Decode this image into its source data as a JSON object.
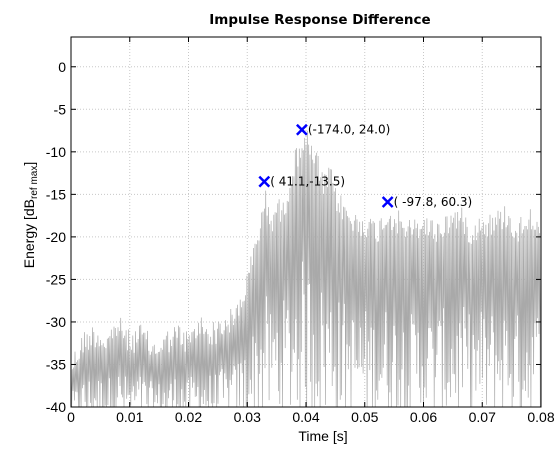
{
  "chart_data": {
    "type": "line",
    "title": "Impulse Response Difference",
    "xlabel": "Time [s]",
    "ylabel_main": "Energy [dB",
    "ylabel_sub": "ref max",
    "ylabel_close": "]",
    "xlim": [
      0,
      0.08
    ],
    "ylim": [
      -40,
      3.5
    ],
    "grid": true,
    "x_ticks": [
      0,
      0.01,
      0.02,
      0.03,
      0.04,
      0.05,
      0.06,
      0.07,
      0.08
    ],
    "x_tick_labels": [
      "0",
      "0.01",
      "0.02",
      "0.03",
      "0.04",
      "0.05",
      "0.06",
      "0.07",
      "0.08"
    ],
    "y_ticks": [
      -40,
      -35,
      -30,
      -25,
      -20,
      -15,
      -10,
      -5,
      0
    ],
    "y_tick_labels": [
      "-40",
      "-35",
      "-30",
      "-25",
      "-20",
      "-15",
      "-10",
      "-5",
      "0"
    ],
    "series": [
      {
        "color": "#a9a9a9",
        "x": [
          0.0,
          0.002,
          0.004,
          0.006,
          0.008,
          0.01,
          0.012,
          0.014,
          0.016,
          0.018,
          0.02,
          0.022,
          0.024,
          0.026,
          0.028,
          0.03,
          0.031,
          0.032,
          0.033,
          0.034,
          0.035,
          0.036,
          0.037,
          0.038,
          0.039,
          0.04,
          0.041,
          0.042,
          0.043,
          0.044,
          0.045,
          0.046,
          0.047,
          0.048,
          0.05,
          0.052,
          0.054,
          0.056,
          0.058,
          0.06,
          0.062,
          0.064,
          0.066,
          0.068,
          0.07,
          0.072,
          0.074,
          0.076,
          0.078,
          0.08
        ],
        "y": [
          -34,
          -31,
          -30,
          -31,
          -29,
          -31,
          -30,
          -32,
          -31,
          -30,
          -31,
          -29,
          -30,
          -29,
          -28,
          -24,
          -21,
          -18,
          -14,
          -17,
          -15,
          -16,
          -13,
          -10,
          -8,
          -7,
          -9,
          -10,
          -13,
          -11,
          -14,
          -15,
          -16,
          -17,
          -17,
          -18,
          -16,
          -17,
          -18,
          -17,
          -18,
          -17,
          -16,
          -18,
          -17,
          -17,
          -16,
          -18,
          -16,
          -17
        ]
      }
    ],
    "markers": [
      {
        "x": 0.0329,
        "y": -13.5,
        "label": "( 41.1,-13.5)",
        "color": "#0000ff"
      },
      {
        "x": 0.0393,
        "y": -7.4,
        "label": "(-174.0, 24.0)",
        "color": "#0000ff"
      },
      {
        "x": 0.0539,
        "y": -15.9,
        "label": "( -97.8, 60.3)",
        "color": "#0000ff"
      }
    ]
  }
}
